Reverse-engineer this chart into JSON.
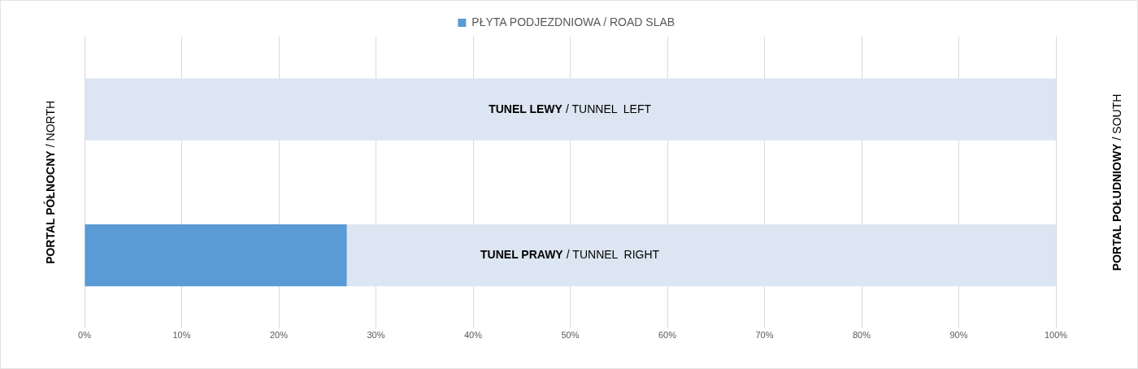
{
  "chart_data": {
    "type": "bar",
    "orientation": "horizontal",
    "stacked": true,
    "categories": [
      "TUNEL LEWY / TUNNEL  LEFT",
      "TUNEL PRAWY / TUNNEL  RIGHT"
    ],
    "series": [
      {
        "name": "PŁYTA PODJEZDNIOWA / ROAD SLAB",
        "color": "#5b9bd5",
        "values": [
          0,
          27
        ]
      },
      {
        "color": "#dce6f2",
        "values": [
          100,
          73
        ]
      }
    ],
    "xlim": [
      0,
      100
    ],
    "xticks": [
      {
        "value": 0,
        "label": "0%"
      },
      {
        "value": 10,
        "label": "10%"
      },
      {
        "value": 20,
        "label": "20%"
      },
      {
        "value": 30,
        "label": "30%"
      },
      {
        "value": 40,
        "label": "40%"
      },
      {
        "value": 50,
        "label": "50%"
      },
      {
        "value": 60,
        "label": "60%"
      },
      {
        "value": 70,
        "label": "70%"
      },
      {
        "value": 80,
        "label": "80%"
      },
      {
        "value": 90,
        "label": "90%"
      },
      {
        "value": 100,
        "label": "100%"
      }
    ],
    "ylabel": "PORTAL PÓŁNOCNY / NORTH",
    "y2label": "PORTAL POŁUDNIOWY / SOUTH",
    "grid": "x",
    "legend": "top"
  }
}
